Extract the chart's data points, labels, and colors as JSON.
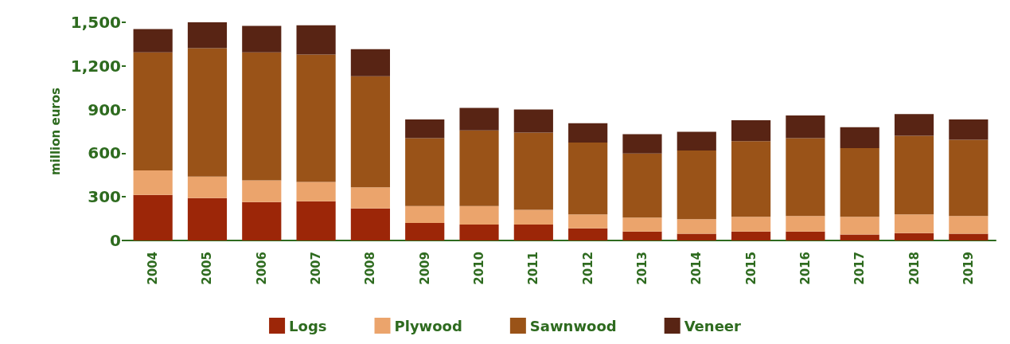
{
  "chart_data": {
    "type": "bar",
    "stacked": true,
    "ylabel": "million euros",
    "categories": [
      "2004",
      "2005",
      "2006",
      "2007",
      "2008",
      "2009",
      "2010",
      "2011",
      "2012",
      "2013",
      "2014",
      "2015",
      "2016",
      "2017",
      "2018",
      "2019"
    ],
    "series": [
      {
        "name": "Logs",
        "color": "#9c2608",
        "values": [
          313,
          292,
          264,
          269,
          221,
          121,
          110,
          110,
          84,
          62,
          46,
          62,
          62,
          41,
          51,
          46
        ]
      },
      {
        "name": "Plywood",
        "color": "#eba46c",
        "values": [
          169,
          147,
          149,
          133,
          144,
          116,
          127,
          101,
          95,
          96,
          101,
          101,
          106,
          122,
          128,
          122
        ]
      },
      {
        "name": "Sawnwood",
        "color": "#9a5318",
        "values": [
          812,
          883,
          881,
          876,
          764,
          467,
          520,
          531,
          494,
          440,
          472,
          520,
          536,
          472,
          541,
          525
        ]
      },
      {
        "name": "Veneer",
        "color": "#582414",
        "values": [
          159,
          178,
          181,
          202,
          186,
          128,
          154,
          159,
          133,
          133,
          128,
          144,
          155,
          144,
          149,
          139
        ]
      }
    ],
    "ylim": [
      0,
      1500
    ],
    "yticks": [
      {
        "value": 0,
        "label": "0"
      },
      {
        "value": 300,
        "label": "300"
      },
      {
        "value": 600,
        "label": "600"
      },
      {
        "value": 900,
        "label": "900"
      },
      {
        "value": 1200,
        "label": "1,200"
      },
      {
        "value": 1500,
        "label": "1,500"
      }
    ],
    "grid": false,
    "legend": "bottom"
  }
}
